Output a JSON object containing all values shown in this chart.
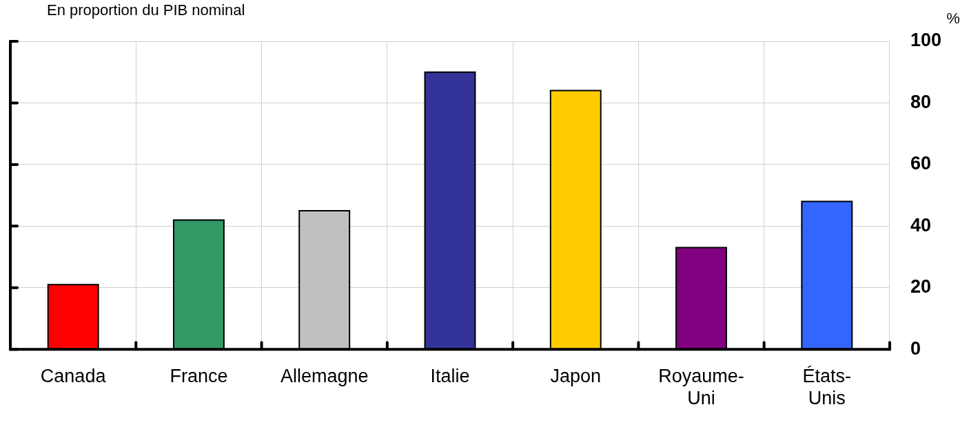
{
  "chart_data": {
    "type": "bar",
    "subtitle": "En proportion du PIB nominal",
    "ylabel": "%",
    "categories": [
      "Canada",
      "France",
      "Allemagne",
      "Italie",
      "Japon",
      "Royaume-Uni",
      "États-Unis"
    ],
    "values": [
      21,
      42,
      45,
      90,
      84,
      33,
      48
    ],
    "colors": [
      "#ff0000",
      "#339966",
      "#c0c0c0",
      "#333399",
      "#ffcc00",
      "#800080",
      "#3366ff"
    ],
    "ylim": [
      0,
      100
    ],
    "yticks": [
      0,
      20,
      40,
      60,
      80,
      100
    ],
    "grid": true
  }
}
